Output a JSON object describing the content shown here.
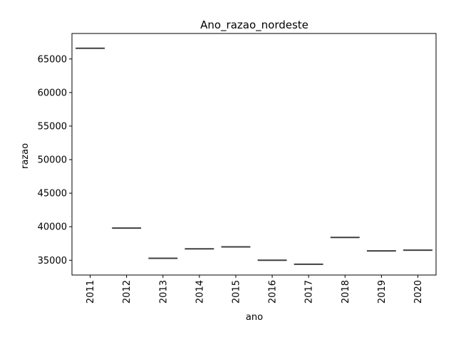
{
  "chart_data": {
    "type": "box",
    "title": "Ano_razao_nordeste",
    "xlabel": "ano",
    "ylabel": "razao",
    "categories": [
      "2011",
      "2012",
      "2013",
      "2014",
      "2015",
      "2016",
      "2017",
      "2018",
      "2019",
      "2020"
    ],
    "values": [
      66600,
      39800,
      35300,
      36700,
      37000,
      35000,
      34400,
      38400,
      36400,
      36500
    ],
    "ylim": [
      32800,
      68800
    ],
    "yticks": [
      35000,
      40000,
      45000,
      50000,
      55000,
      60000,
      65000
    ],
    "ytick_labels": [
      "35000",
      "40000",
      "45000",
      "50000",
      "55000",
      "60000",
      "65000"
    ],
    "grid": false,
    "line_color": "#3f3f3f"
  }
}
